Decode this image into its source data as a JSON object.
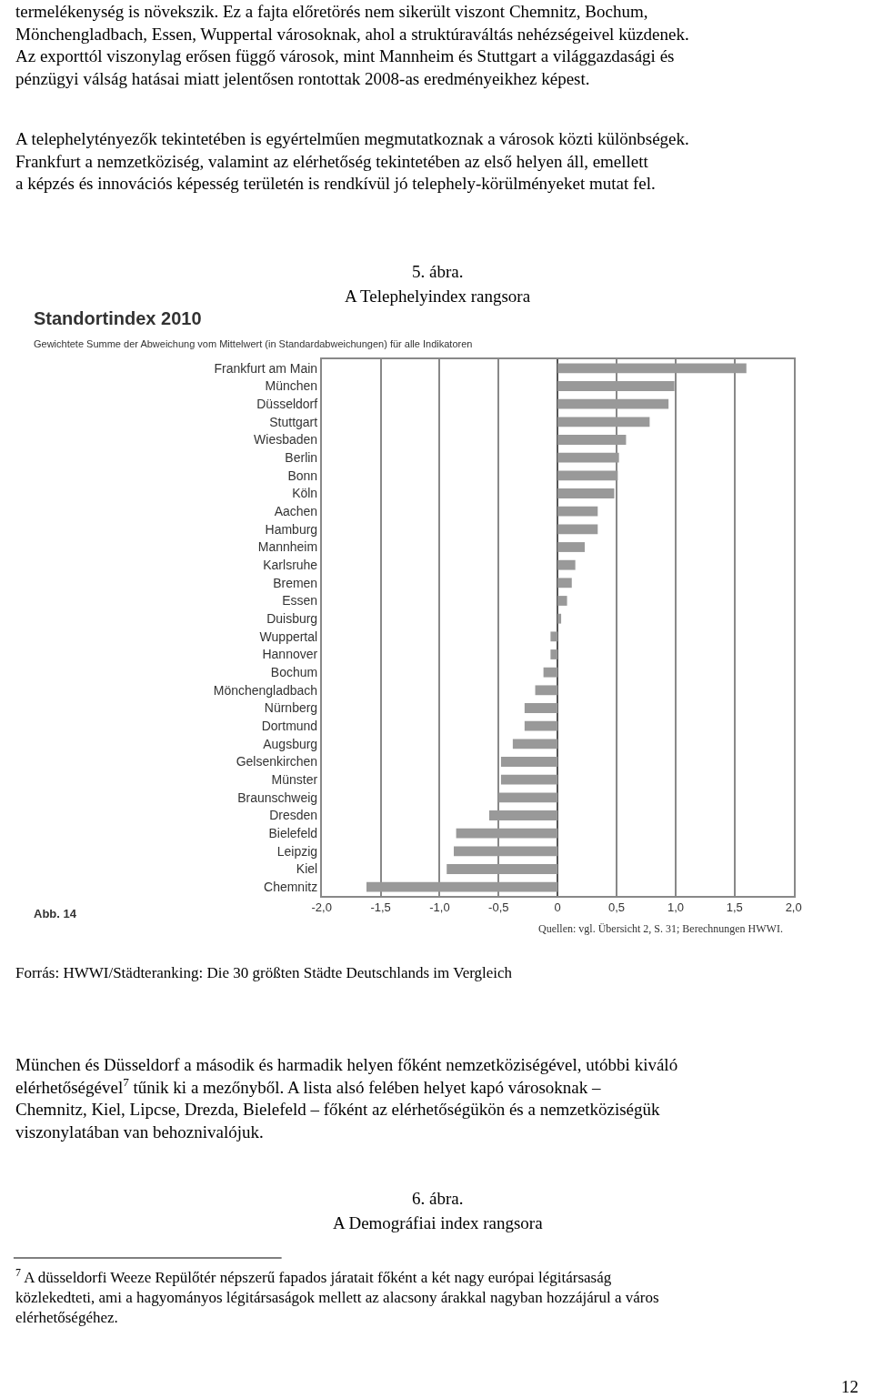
{
  "chart_data": {
    "type": "bar",
    "orientation": "horizontal",
    "title": "Standortindex 2010",
    "subtitle": "Gewichtete Summe der Abweichung vom Mittelwert (in Standardabweichungen) für alle Indikatoren",
    "categories": [
      "Frankfurt am Main",
      "München",
      "Düsseldorf",
      "Stuttgart",
      "Wiesbaden",
      "Berlin",
      "Bonn",
      "Köln",
      "Aachen",
      "Hamburg",
      "Mannheim",
      "Karlsruhe",
      "Bremen",
      "Essen",
      "Duisburg",
      "Wuppertal",
      "Hannover",
      "Bochum",
      "Mönchengladbach",
      "Nürnberg",
      "Dortmund",
      "Augsburg",
      "Gelsenkirchen",
      "Münster",
      "Braunschweig",
      "Dresden",
      "Bielefeld",
      "Leipzig",
      "Kiel",
      "Chemnitz"
    ],
    "values": [
      1.6,
      0.99,
      0.94,
      0.78,
      0.58,
      0.52,
      0.51,
      0.48,
      0.34,
      0.34,
      0.23,
      0.15,
      0.12,
      0.08,
      0.03,
      -0.06,
      -0.06,
      -0.12,
      -0.19,
      -0.28,
      -0.28,
      -0.38,
      -0.48,
      -0.48,
      -0.5,
      -0.58,
      -0.86,
      -0.88,
      -0.94,
      -1.62
    ],
    "color": "#999999",
    "xlim": [
      -2,
      2
    ],
    "xticks": [
      {
        "value": -2,
        "label": "-2,0"
      },
      {
        "value": -1.5,
        "label": "-1,5"
      },
      {
        "value": -1,
        "label": "-1,0"
      },
      {
        "value": -0.5,
        "label": "-0,5"
      },
      0,
      {
        "value": 0.5,
        "label": "0,5"
      },
      {
        "value": 1,
        "label": "1,0"
      },
      {
        "value": 1.5,
        "label": "1,5"
      },
      {
        "value": 2,
        "label": "2,0"
      }
    ],
    "grid": "x",
    "legend": false,
    "annotations": [
      "termelékenység is növekszik. Ez a fajta előretörés nem sikerült viszont Chemnitz, Bochum, Mönchengladbach, Essen, Wuppertal városoknak, ahol a struktúraváltás nehézségeivel küzdenek. Az exporttól viszonylag erősen függő városok, mint Mannheim és Stuttgart a világgazdasági és pénzügyi válság hatásai miatt jelentősen rontottak 2008-as eredményeikhez képest.",
      "A telephelytényezők tekintetében is egyértelműen megmutatkoznak a városok közti különbségek. Frankfurt a nemzetköziség, valamint az elérhetőség tekintetében az első helyen áll, emellett a képzés és innovációs képesség területén is rendkívül jó telephely-körülményeket mutat fel.",
      "5. ábra.",
      "A Telephelyindex rangsora",
      "Abb. 14",
      "Quellen: vgl. Übersicht 2, S. 31; Berechnungen HWWI.",
      "Forrás: HWWI/Städteranking: Die 30 größten Städte Deutschlands im Vergleich",
      "München és Düsseldorf a második és harmadik helyen főként nemzetköziségével, utóbbi kiváló elérhetőségével$^{7}$ tűnik ki a mezőnyből. A lista alsó felében helyet kapó városoknak – Chemnitz, Kiel, Lipcse, Drezda, Bielefeld – főként az elérhetőségükön és a nemzetköziségük viszonylatában van behoznivalójuk.",
      "6. ábra.",
      "A Demográfiai index rangsora",
      "$^{7}$ A düsseldorfi Weeze Repülőtér népszerű fapados járatait főként a két nagy európai légitársaság közlekedteti, ami a hagyományos légitársaságok mellett az alacsony árakkal nagyban hozzájárul a város elérhetőségéhez.",
      "12"
    ]
  }
}
